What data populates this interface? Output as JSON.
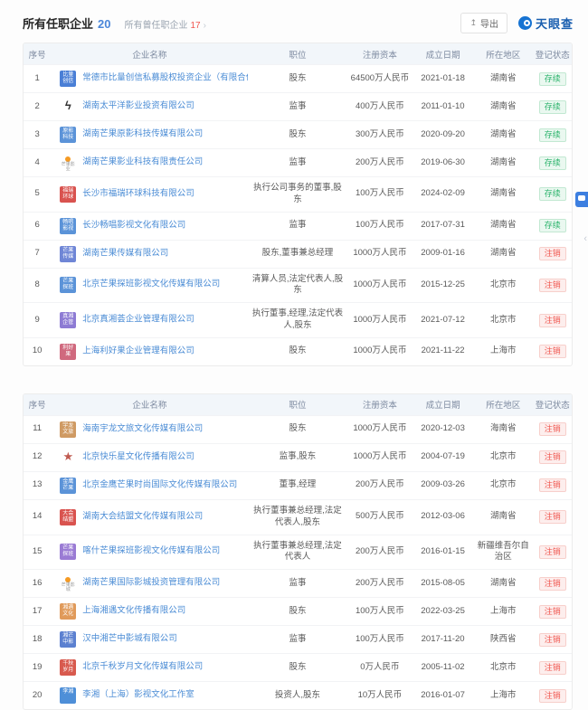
{
  "header": {
    "title": "所有任职企业",
    "title_count": "20",
    "subtitle": "所有曾任职企业",
    "subtitle_count": "17",
    "subtitle_arrow": "›",
    "export_icon": "↥",
    "export_label": "导出",
    "brand": "天眼查",
    "brand_color": "#1673d2"
  },
  "columns": [
    "序号",
    "企业名称",
    "职位",
    "注册资本",
    "成立日期",
    "所在地区",
    "登记状态"
  ],
  "status": {
    "active": "存续",
    "cancelled": "注销",
    "active_color": "#2bb36b",
    "cancelled_color": "#f0564f"
  },
  "tables": [
    {
      "rows": [
        {
          "no": "1",
          "name": "常德市比量创信私募股权投资企业（有限合伙）",
          "logo": {
            "type": "tile",
            "text": "比量创信",
            "bg": "#4a7fd6",
            "fg": "#ffffff"
          },
          "position": "股东",
          "capital": "64500万人民币",
          "date": "2021-01-18",
          "region": "湖南省",
          "status": "存续"
        },
        {
          "no": "2",
          "name": "湖南太平洋影业投资有限公司",
          "logo": {
            "type": "glyph",
            "text": "ϟ",
            "bg": "transparent",
            "fg": "#333333"
          },
          "position": "监事",
          "capital": "400万人民币",
          "date": "2011-01-10",
          "region": "湖南省",
          "status": "存续"
        },
        {
          "no": "3",
          "name": "湖南芒果原影科技传媒有限公司",
          "logo": {
            "type": "tile",
            "text": "原影科技",
            "bg": "#5b93d8",
            "fg": "#ffffff"
          },
          "position": "股东",
          "capital": "300万人民币",
          "date": "2020-09-20",
          "region": "湖南省",
          "status": "存续"
        },
        {
          "no": "4",
          "name": "湖南芒果影业科技有限责任公司",
          "logo": {
            "type": "mark",
            "text": "芒果影业",
            "bg": "transparent",
            "fg": "#888888",
            "dot": "#f59a23"
          },
          "position": "监事",
          "capital": "200万人民币",
          "date": "2019-06-30",
          "region": "湖南省",
          "status": "存续"
        },
        {
          "no": "5",
          "name": "长沙市福瑞环球科技有限公司",
          "logo": {
            "type": "tile",
            "text": "福瑞环球",
            "bg": "#d9534f",
            "fg": "#ffffff"
          },
          "position": "执行公司事务的董事,股东",
          "capital": "100万人民币",
          "date": "2024-02-09",
          "region": "湖南省",
          "status": "存续"
        },
        {
          "no": "6",
          "name": "长沙畅唱影视文化有限公司",
          "logo": {
            "type": "tile",
            "text": "畅唱影视",
            "bg": "#5b93d8",
            "fg": "#ffffff"
          },
          "position": "监事",
          "capital": "100万人民币",
          "date": "2017-07-31",
          "region": "湖南省",
          "status": "存续"
        },
        {
          "no": "7",
          "name": "湖南芒果传媒有限公司",
          "logo": {
            "type": "tile",
            "text": "芒果传媒",
            "bg": "#6f86d6",
            "fg": "#ffffff"
          },
          "position": "股东,董事兼总经理",
          "capital": "1000万人民币",
          "date": "2009-01-16",
          "region": "湖南省",
          "status": "注销"
        },
        {
          "no": "8",
          "name": "北京芒果探班影视文化传媒有限公司",
          "logo": {
            "type": "tile",
            "text": "芒果探班",
            "bg": "#5b93d8",
            "fg": "#ffffff"
          },
          "position": "清算人员,法定代表人,股东",
          "capital": "1000万人民币",
          "date": "2015-12-25",
          "region": "北京市",
          "status": "注销"
        },
        {
          "no": "9",
          "name": "北京真湘荟企业管理有限公司",
          "logo": {
            "type": "tile",
            "text": "真湘企管",
            "bg": "#8d7bd4",
            "fg": "#ffffff"
          },
          "position": "执行董事,经理,法定代表人,股东",
          "capital": "1000万人民币",
          "date": "2021-07-12",
          "region": "北京市",
          "status": "注销"
        },
        {
          "no": "10",
          "name": "上海利好果企业管理有限公司",
          "logo": {
            "type": "tile",
            "text": "利好果",
            "bg": "#d0697e",
            "fg": "#ffffff"
          },
          "position": "股东",
          "capital": "1000万人民币",
          "date": "2021-11-22",
          "region": "上海市",
          "status": "注销"
        }
      ]
    },
    {
      "rows": [
        {
          "no": "11",
          "name": "海南宇龙文旅文化传媒有限公司",
          "logo": {
            "type": "tile",
            "text": "宇龙文旅",
            "bg": "#cf9a63",
            "fg": "#ffffff"
          },
          "position": "股东",
          "capital": "1000万人民币",
          "date": "2020-12-03",
          "region": "海南省",
          "status": "注销"
        },
        {
          "no": "12",
          "name": "北京快乐星文化传播有限公司",
          "logo": {
            "type": "glyph",
            "text": "★",
            "bg": "transparent",
            "fg": "#c05a50"
          },
          "position": "监事,股东",
          "capital": "1000万人民币",
          "date": "2004-07-19",
          "region": "北京市",
          "status": "注销"
        },
        {
          "no": "13",
          "name": "北京金鹰芒果时尚国际文化传媒有限公司",
          "logo": {
            "type": "tile",
            "text": "金鹰芒果",
            "bg": "#5b93d8",
            "fg": "#ffffff"
          },
          "position": "董事,经理",
          "capital": "200万人民币",
          "date": "2009-03-26",
          "region": "北京市",
          "status": "注销"
        },
        {
          "no": "14",
          "name": "湖南大会结盟文化传媒有限公司",
          "logo": {
            "type": "tile",
            "text": "大会结盟",
            "bg": "#d9534f",
            "fg": "#ffffff"
          },
          "position": "执行董事兼总经理,法定代表人,股东",
          "capital": "500万人民币",
          "date": "2012-03-06",
          "region": "湖南省",
          "status": "注销"
        },
        {
          "no": "15",
          "name": "喀什芒果探班影视文化传媒有限公司",
          "logo": {
            "type": "tile",
            "text": "芒果探班",
            "bg": "#9a7bd4",
            "fg": "#ffffff"
          },
          "position": "执行董事兼总经理,法定代表人",
          "capital": "200万人民币",
          "date": "2016-01-15",
          "region": "新疆维吾尔自治区",
          "status": "注销"
        },
        {
          "no": "16",
          "name": "湖南芒果国际影城投资管理有限公司",
          "logo": {
            "type": "mark",
            "text": "芒果影城",
            "bg": "transparent",
            "fg": "#888888",
            "dot": "#f59a23"
          },
          "position": "监事",
          "capital": "200万人民币",
          "date": "2015-08-05",
          "region": "湖南省",
          "status": "注销"
        },
        {
          "no": "17",
          "name": "上海湘遇文化传播有限公司",
          "logo": {
            "type": "tile",
            "text": "湘遇文化",
            "bg": "#e09a5a",
            "fg": "#ffffff"
          },
          "position": "股东",
          "capital": "100万人民币",
          "date": "2022-03-25",
          "region": "上海市",
          "status": "注销"
        },
        {
          "no": "18",
          "name": "汉中湘芒中影城有限公司",
          "logo": {
            "type": "tile",
            "text": "湘芒中影",
            "bg": "#5b80d0",
            "fg": "#ffffff"
          },
          "position": "监事",
          "capital": "100万人民币",
          "date": "2017-11-20",
          "region": "陕西省",
          "status": "注销"
        },
        {
          "no": "19",
          "name": "北京千秋岁月文化传媒有限公司",
          "logo": {
            "type": "tile",
            "text": "千秋岁月",
            "bg": "#d85a4e",
            "fg": "#ffffff"
          },
          "position": "股东",
          "capital": "0万人民币",
          "date": "2005-11-02",
          "region": "北京市",
          "status": "注销"
        },
        {
          "no": "20",
          "name": "李湘（上海）影视文化工作室",
          "logo": {
            "type": "tile",
            "text": "李湘",
            "bg": "#4e8fd8",
            "fg": "#ffffff"
          },
          "position": "投资人,股东",
          "capital": "10万人民币",
          "date": "2016-01-07",
          "region": "上海市",
          "status": "注销"
        }
      ]
    }
  ],
  "widgets": {
    "collapse_glyph": "‹"
  }
}
